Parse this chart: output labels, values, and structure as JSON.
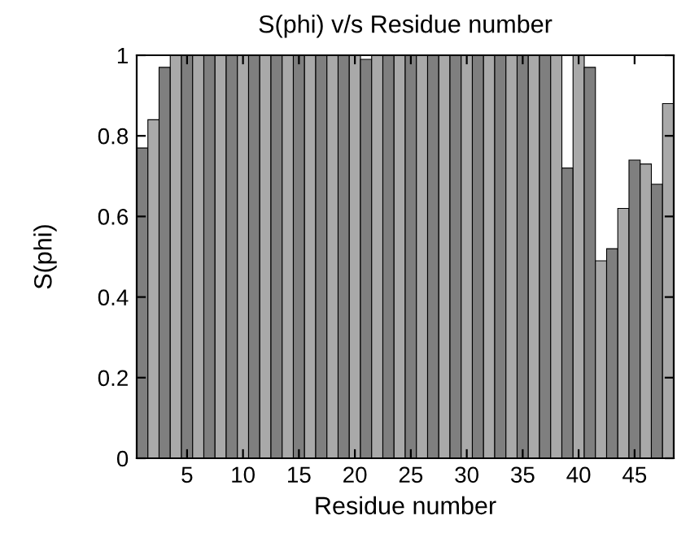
{
  "chart_data": {
    "type": "bar",
    "title": "S(phi) v/s Residue number",
    "xlabel": "Residue number",
    "ylabel": "S(phi)",
    "x": [
      1,
      2,
      3,
      4,
      5,
      6,
      7,
      8,
      9,
      10,
      11,
      12,
      13,
      14,
      15,
      16,
      17,
      18,
      19,
      20,
      21,
      22,
      23,
      24,
      25,
      26,
      27,
      28,
      29,
      30,
      31,
      32,
      33,
      34,
      35,
      36,
      37,
      38,
      39,
      40,
      41,
      42,
      43,
      44,
      45,
      46,
      47,
      48
    ],
    "values": [
      0.77,
      0.84,
      0.97,
      1,
      1,
      1,
      1,
      1,
      1,
      1,
      1,
      1,
      1,
      1,
      1,
      1,
      1,
      1,
      1,
      1,
      0.99,
      1,
      1,
      1,
      1,
      1,
      1,
      1,
      1,
      1,
      1,
      1,
      1,
      1,
      1,
      1,
      1,
      1,
      0.72,
      1,
      0.97,
      0.49,
      0.52,
      0.62,
      0.74,
      0.73,
      0.68,
      0.88
    ],
    "colors": [
      "#7f7f7f",
      "#a9a9a9",
      "#7f7f7f",
      "#a9a9a9",
      "#7f7f7f",
      "#a9a9a9",
      "#7f7f7f",
      "#a9a9a9",
      "#7f7f7f",
      "#a9a9a9",
      "#7f7f7f",
      "#a9a9a9",
      "#7f7f7f",
      "#a9a9a9",
      "#7f7f7f",
      "#a9a9a9",
      "#7f7f7f",
      "#a9a9a9",
      "#7f7f7f",
      "#a9a9a9",
      "#7f7f7f",
      "#a9a9a9",
      "#7f7f7f",
      "#a9a9a9",
      "#7f7f7f",
      "#a9a9a9",
      "#7f7f7f",
      "#a9a9a9",
      "#7f7f7f",
      "#a9a9a9",
      "#7f7f7f",
      "#a9a9a9",
      "#7f7f7f",
      "#a9a9a9",
      "#7f7f7f",
      "#a9a9a9",
      "#7f7f7f",
      "#a9a9a9",
      "#7f7f7f",
      "#a9a9a9",
      "#7f7f7f",
      "#a9a9a9",
      "#7f7f7f",
      "#a9a9a9",
      "#7f7f7f",
      "#a9a9a9",
      "#7f7f7f",
      "#a9a9a9"
    ],
    "xlim": [
      0.5,
      48.5
    ],
    "xticks": [
      5,
      10,
      15,
      20,
      25,
      30,
      35,
      40,
      45
    ],
    "ylim": [
      0,
      1
    ],
    "yticks": [
      0,
      {
        "value": 0.2,
        "label": "0.2"
      },
      {
        "value": 0.4,
        "label": "0.4"
      },
      {
        "value": 0.6,
        "label": "0.6"
      },
      {
        "value": 0.8,
        "label": "0.8"
      },
      1
    ],
    "grid": false,
    "legend": false
  }
}
